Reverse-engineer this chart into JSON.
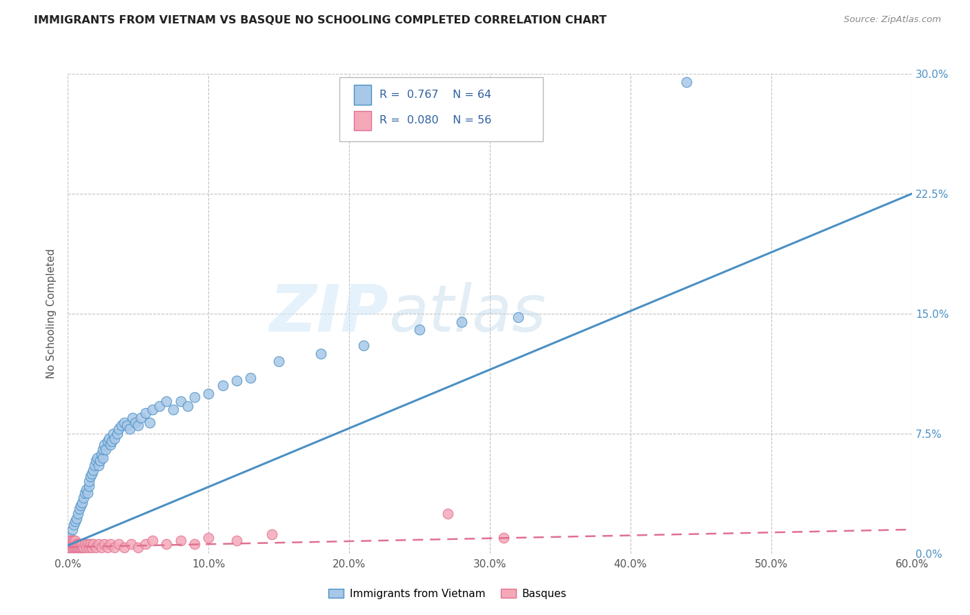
{
  "title": "IMMIGRANTS FROM VIETNAM VS BASQUE NO SCHOOLING COMPLETED CORRELATION CHART",
  "source": "Source: ZipAtlas.com",
  "ylabel": "No Schooling Completed",
  "x_tick_labels": [
    "0.0%",
    "10.0%",
    "20.0%",
    "30.0%",
    "40.0%",
    "50.0%",
    "60.0%"
  ],
  "x_ticks": [
    0.0,
    0.1,
    0.2,
    0.3,
    0.4,
    0.5,
    0.6
  ],
  "y_tick_labels": [
    "0.0%",
    "7.5%",
    "15.0%",
    "22.5%",
    "30.0%"
  ],
  "y_ticks": [
    0.0,
    0.075,
    0.15,
    0.225,
    0.3
  ],
  "xlim": [
    0.0,
    0.6
  ],
  "ylim": [
    0.0,
    0.3
  ],
  "legend_label_1": "Immigrants from Vietnam",
  "legend_label_2": "Basques",
  "r1": "0.767",
  "n1": "64",
  "r2": "0.080",
  "n2": "56",
  "color_vietnam": "#a8c8e8",
  "color_basque": "#f4a8b8",
  "color_vietnam_line": "#4a90c4",
  "color_basque_line": "#e07090",
  "watermark_zip": "ZIP",
  "watermark_atlas": "atlas",
  "background_color": "#ffffff",
  "grid_color": "#bbbbbb",
  "vietnam_line_start_x": 0.0,
  "vietnam_line_start_y": 0.005,
  "vietnam_line_end_x": 0.6,
  "vietnam_line_end_y": 0.225,
  "basque_line_start_x": 0.0,
  "basque_line_start_y": 0.004,
  "basque_line_end_x": 0.6,
  "basque_line_end_y": 0.015,
  "vietnam_x": [
    0.002,
    0.003,
    0.004,
    0.005,
    0.006,
    0.007,
    0.008,
    0.009,
    0.01,
    0.011,
    0.012,
    0.013,
    0.014,
    0.015,
    0.015,
    0.016,
    0.017,
    0.018,
    0.019,
    0.02,
    0.021,
    0.022,
    0.023,
    0.024,
    0.025,
    0.025,
    0.026,
    0.027,
    0.028,
    0.029,
    0.03,
    0.031,
    0.032,
    0.033,
    0.035,
    0.036,
    0.038,
    0.04,
    0.042,
    0.044,
    0.046,
    0.048,
    0.05,
    0.052,
    0.055,
    0.058,
    0.06,
    0.065,
    0.07,
    0.075,
    0.08,
    0.085,
    0.09,
    0.1,
    0.11,
    0.12,
    0.13,
    0.15,
    0.18,
    0.21,
    0.25,
    0.28,
    0.32,
    0.44
  ],
  "vietnam_y": [
    0.01,
    0.015,
    0.018,
    0.02,
    0.022,
    0.025,
    0.028,
    0.03,
    0.032,
    0.035,
    0.038,
    0.04,
    0.038,
    0.042,
    0.045,
    0.048,
    0.05,
    0.052,
    0.055,
    0.058,
    0.06,
    0.055,
    0.058,
    0.062,
    0.06,
    0.065,
    0.068,
    0.065,
    0.07,
    0.072,
    0.068,
    0.07,
    0.075,
    0.072,
    0.075,
    0.078,
    0.08,
    0.082,
    0.08,
    0.078,
    0.085,
    0.082,
    0.08,
    0.085,
    0.088,
    0.082,
    0.09,
    0.092,
    0.095,
    0.09,
    0.095,
    0.092,
    0.098,
    0.1,
    0.105,
    0.108,
    0.11,
    0.12,
    0.125,
    0.13,
    0.14,
    0.145,
    0.148,
    0.295
  ],
  "basque_x": [
    0.0,
    0.0,
    0.001,
    0.001,
    0.001,
    0.002,
    0.002,
    0.002,
    0.003,
    0.003,
    0.003,
    0.004,
    0.004,
    0.004,
    0.005,
    0.005,
    0.005,
    0.006,
    0.006,
    0.007,
    0.007,
    0.008,
    0.008,
    0.009,
    0.009,
    0.01,
    0.01,
    0.011,
    0.012,
    0.013,
    0.014,
    0.015,
    0.016,
    0.017,
    0.018,
    0.02,
    0.022,
    0.024,
    0.026,
    0.028,
    0.03,
    0.033,
    0.036,
    0.04,
    0.045,
    0.05,
    0.055,
    0.06,
    0.07,
    0.08,
    0.09,
    0.1,
    0.12,
    0.145,
    0.27,
    0.31
  ],
  "basque_y": [
    0.004,
    0.006,
    0.004,
    0.006,
    0.008,
    0.004,
    0.006,
    0.008,
    0.004,
    0.006,
    0.008,
    0.004,
    0.006,
    0.008,
    0.004,
    0.006,
    0.008,
    0.004,
    0.006,
    0.004,
    0.006,
    0.004,
    0.006,
    0.004,
    0.006,
    0.004,
    0.006,
    0.004,
    0.006,
    0.004,
    0.006,
    0.004,
    0.006,
    0.004,
    0.006,
    0.004,
    0.006,
    0.004,
    0.006,
    0.004,
    0.006,
    0.004,
    0.006,
    0.004,
    0.006,
    0.004,
    0.006,
    0.008,
    0.006,
    0.008,
    0.006,
    0.01,
    0.008,
    0.012,
    0.025,
    0.01
  ]
}
